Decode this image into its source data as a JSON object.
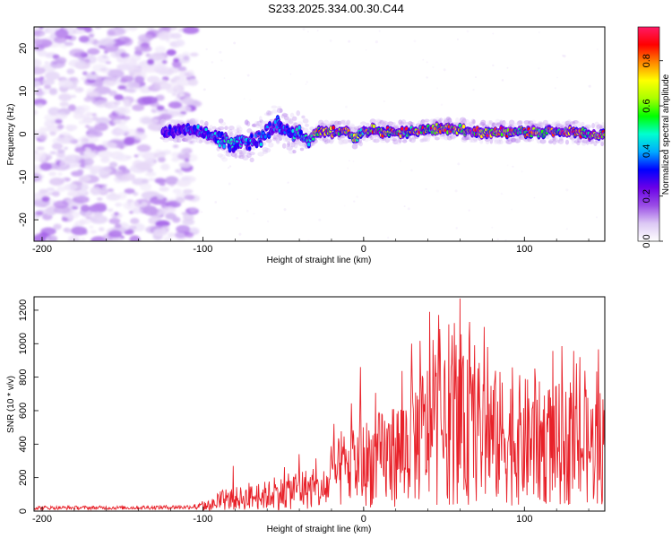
{
  "title": "S233.2025.334.00.30.C44",
  "spectrogram": {
    "type": "heatmap",
    "xlabel": "Height of straight line (km)",
    "ylabel": "Frequency (Hz)",
    "xlim": [
      -205,
      150
    ],
    "ylim": [
      -25,
      25
    ],
    "xticks": [
      "-200",
      "-100",
      "0",
      "100"
    ],
    "yticks": [
      "-20",
      "-10",
      "0",
      "10",
      "20"
    ],
    "colorbar": {
      "label": "Normalized spectral amplitude",
      "range": [
        0.0,
        0.95
      ],
      "ticks": [
        "0.0",
        "0.2",
        "0.4",
        "0.6",
        "0.8"
      ],
      "colormap": [
        "#ffffff",
        "#dcc8f4",
        "#9a4de6",
        "#6a00e8",
        "#0000ff",
        "#00aaff",
        "#00ffd0",
        "#00ff00",
        "#aaff00",
        "#ffff00",
        "#ff8800",
        "#ff0000",
        "#ff1a66"
      ]
    },
    "noise_region_km": [
      -205,
      -105
    ],
    "signal_band": {
      "x": [
        -125,
        -110,
        -100,
        -95,
        -88,
        -82,
        -75,
        -70,
        -65,
        -58,
        -52,
        -45,
        -40,
        -35,
        -30,
        -20,
        -10,
        -5,
        0,
        5,
        10,
        20,
        30,
        40,
        50,
        60,
        70,
        80,
        90,
        100,
        110,
        120,
        130,
        140,
        150
      ],
      "center": [
        0.5,
        1.0,
        0.5,
        -0.5,
        -1.5,
        -3.0,
        -1.0,
        -2.0,
        -1.0,
        1.5,
        2.5,
        0.0,
        1.0,
        -2.0,
        0.5,
        0.5,
        0.5,
        -1.0,
        0.5,
        1.0,
        0.5,
        0.5,
        0.5,
        1.0,
        1.5,
        1.0,
        0.5,
        0.5,
        0.5,
        0.5,
        0.5,
        0.5,
        0.5,
        0.0,
        0.0
      ],
      "amplitude": [
        0.3,
        0.4,
        0.45,
        0.45,
        0.5,
        0.5,
        0.45,
        0.45,
        0.45,
        0.45,
        0.4,
        0.45,
        0.5,
        0.5,
        0.8,
        0.9,
        0.85,
        0.7,
        0.8,
        0.85,
        0.9,
        0.85,
        0.9,
        0.85,
        0.8,
        0.9,
        0.95,
        0.9,
        0.85,
        0.9,
        0.85,
        0.9,
        0.95,
        0.9,
        0.9
      ]
    }
  },
  "snr": {
    "type": "line",
    "xlabel": "Height of straight line (km)",
    "ylabel": "SNR (10 * v/v)",
    "xlim": [
      -205,
      150
    ],
    "ylim": [
      0,
      1280
    ],
    "xticks": [
      "-200",
      "-100",
      "0",
      "100"
    ],
    "yticks": [
      "0",
      "200",
      "400",
      "600",
      "800",
      "1000",
      "1200"
    ],
    "color": "#e8222a",
    "envelope": {
      "x": [
        -205,
        -150,
        -110,
        -100,
        -90,
        -80,
        -70,
        -60,
        -50,
        -40,
        -30,
        -25,
        -20,
        -10,
        0,
        10,
        20,
        30,
        40,
        50,
        60,
        70,
        80,
        90,
        100,
        110,
        120,
        130,
        140,
        150
      ],
      "y": [
        25,
        25,
        30,
        40,
        70,
        110,
        120,
        140,
        160,
        200,
        190,
        150,
        300,
        380,
        420,
        460,
        500,
        620,
        700,
        700,
        720,
        700,
        660,
        640,
        620,
        600,
        590,
        570,
        560,
        580
      ]
    },
    "peaks": [
      {
        "x": -81,
        "y": 270
      },
      {
        "x": -40,
        "y": 340
      },
      {
        "x": -2,
        "y": 860
      },
      {
        "x": 30,
        "y": 1000
      },
      {
        "x": 60,
        "y": 1270
      },
      {
        "x": 66,
        "y": 1130
      },
      {
        "x": 55,
        "y": 1050
      },
      {
        "x": 77,
        "y": 980
      }
    ]
  }
}
